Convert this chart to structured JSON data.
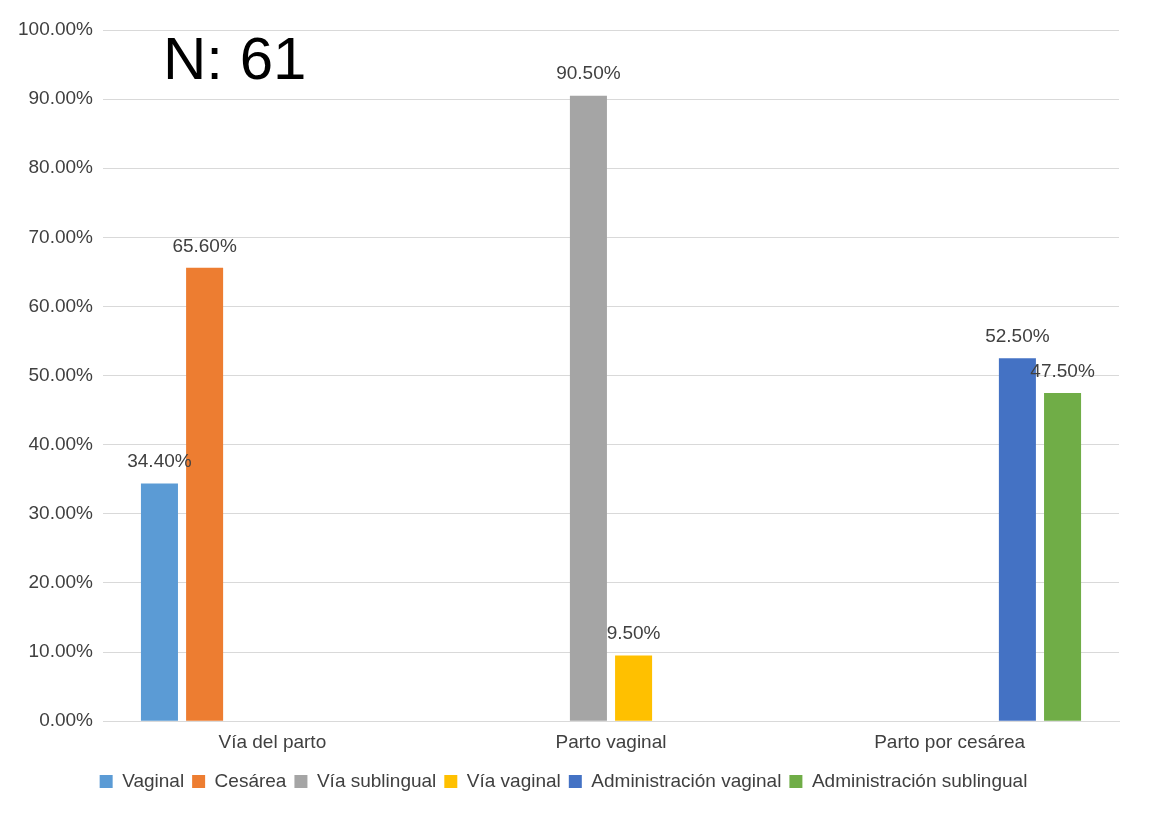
{
  "chart_data": {
    "type": "bar",
    "categories": [
      "Vía del parto",
      "Parto vaginal",
      "Parto por cesárea"
    ],
    "series": [
      {
        "name": "Vaginal",
        "color": "#5b9bd5",
        "values": [
          34.4,
          null,
          null
        ],
        "value_labels": [
          "34.40%",
          null,
          null
        ]
      },
      {
        "name": "Cesárea",
        "color": "#ed7d31",
        "values": [
          65.6,
          null,
          null
        ],
        "value_labels": [
          "65.60%",
          null,
          null
        ]
      },
      {
        "name": "Vía sublingual",
        "color": "#a5a5a5",
        "values": [
          null,
          90.5,
          null
        ],
        "value_labels": [
          null,
          "90.50%",
          null
        ]
      },
      {
        "name": "Vía vaginal",
        "color": "#ffc000",
        "values": [
          null,
          9.5,
          null
        ],
        "value_labels": [
          null,
          "9.50%",
          null
        ]
      },
      {
        "name": "Administración vaginal",
        "color": "#4472c4",
        "values": [
          null,
          null,
          52.5
        ],
        "value_labels": [
          null,
          null,
          "52.50%"
        ]
      },
      {
        "name": "Administración sublingual",
        "color": "#70ad47",
        "values": [
          null,
          null,
          47.5
        ],
        "value_labels": [
          null,
          null,
          "47.50%"
        ]
      }
    ],
    "ylim": [
      0,
      100
    ],
    "yticks": [
      {
        "value": 0,
        "label": "0.00%"
      },
      {
        "value": 10,
        "label": "10.00%"
      },
      {
        "value": 20,
        "label": "20.00%"
      },
      {
        "value": 30,
        "label": "30.00%"
      },
      {
        "value": 40,
        "label": "40.00%"
      },
      {
        "value": 50,
        "label": "50.00%"
      },
      {
        "value": 60,
        "label": "60.00%"
      },
      {
        "value": 70,
        "label": "70.00%"
      },
      {
        "value": 80,
        "label": "80.00%"
      },
      {
        "value": 90,
        "label": "90.00%"
      },
      {
        "value": 100,
        "label": "100.00%"
      }
    ],
    "grid": "y",
    "legend": "bottom",
    "annotations": [
      "N: 61"
    ]
  }
}
